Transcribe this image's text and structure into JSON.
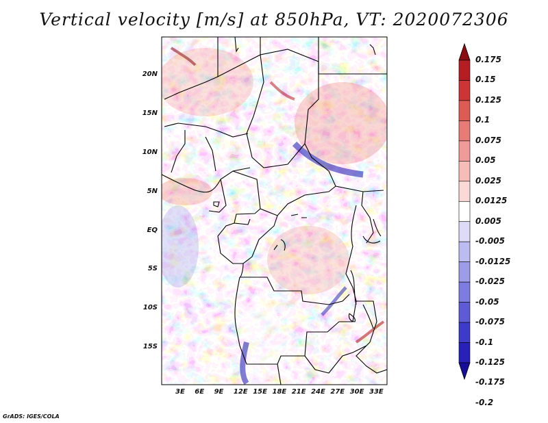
{
  "title": "Vertical velocity [m/s] at 850hPa, VT: 2020072306",
  "credit": "GrADS: IGES/COLA",
  "map": {
    "lat_labels": [
      "20N",
      "15N",
      "10N",
      "5N",
      "EQ",
      "5S",
      "10S",
      "15S"
    ],
    "lon_labels": [
      "3E",
      "6E",
      "9E",
      "12E",
      "15E",
      "18E",
      "21E",
      "24E",
      "27E",
      "30E",
      "33E"
    ],
    "lon_range": [
      1,
      34
    ],
    "lat_range": [
      -19,
      24
    ]
  },
  "colorbar": {
    "labels": [
      "0.175",
      "0.15",
      "0.125",
      "0.1",
      "0.075",
      "0.05",
      "0.025",
      "0.0125",
      "0.005",
      "-0.005",
      "-0.0125",
      "-0.025",
      "-0.05",
      "-0.075",
      "-0.1",
      "-0.125",
      "-0.175",
      "-0.2"
    ],
    "colors": [
      "#8b0d12",
      "#b41e22",
      "#cc3535",
      "#dd5a55",
      "#e77c76",
      "#ef9c98",
      "#f6bcb8",
      "#fbd9d6",
      "#ffffff",
      "#dcdcf6",
      "#bcbcf0",
      "#9d9ce8",
      "#7d7ce0",
      "#5d5bd6",
      "#3e3bcb",
      "#2721b8",
      "#160d9a"
    ]
  }
}
